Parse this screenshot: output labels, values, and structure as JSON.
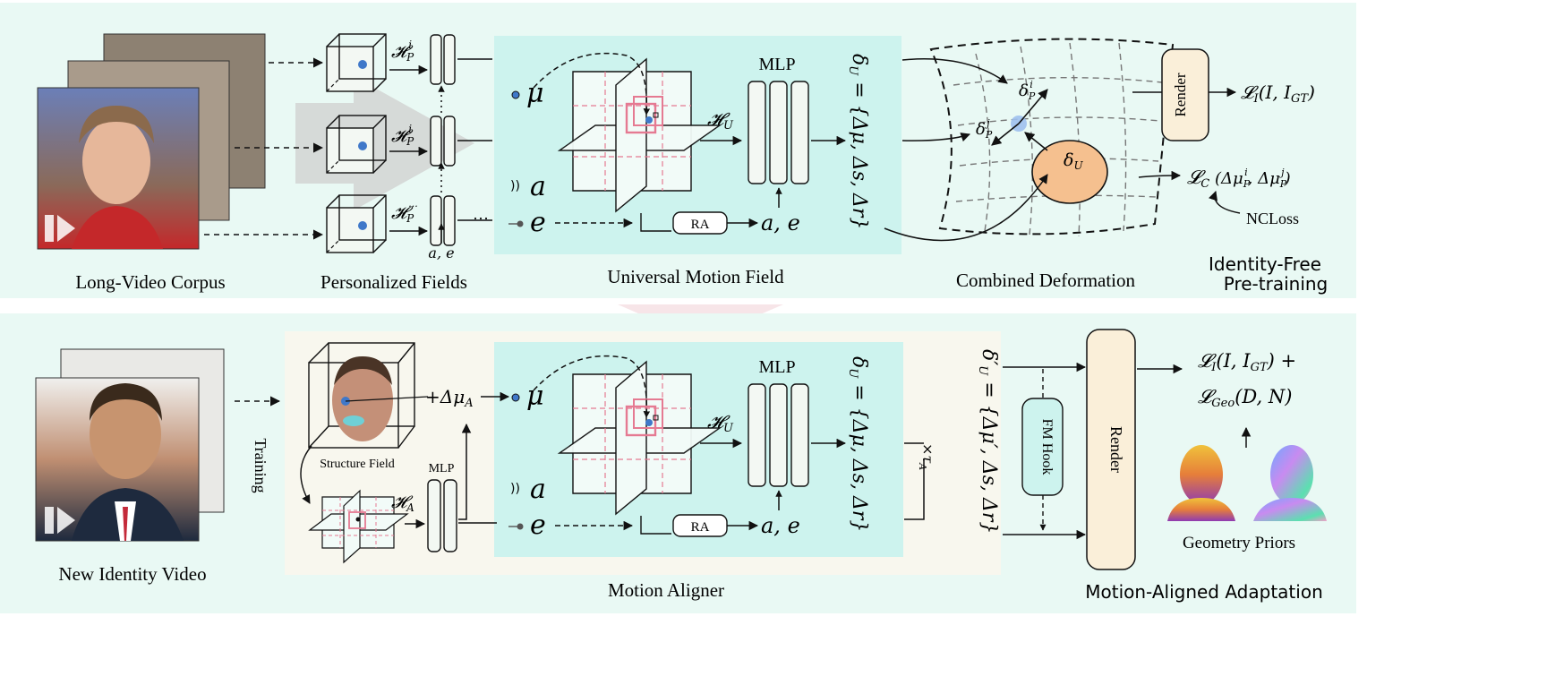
{
  "top": {
    "long_video_corpus": "Long-Video Corpus",
    "personalized_fields": "Personalized Fields",
    "universal_motion_field": "Universal Motion Field",
    "combined_deformation": "Combined Deformation",
    "stage_title_line1": "Identity-Free",
    "stage_title_line2": "Pre-training",
    "hp_sym": "𝓗",
    "hp_sub": "P",
    "hp_sup_i": "i",
    "hp_sup_dots": "···",
    "ae_label": "a, e",
    "ellipsis": "···",
    "mu": "μ",
    "a": "a",
    "e": "e",
    "hu_sym": "𝓗",
    "hu_sub": "U",
    "mlp": "MLP",
    "ra": "RA",
    "ae_out": "a, e",
    "delta_u_eq": "δU = {Δμ, Δs, Δr}",
    "render": "Render",
    "loss_i": "𝓛I(I, IGT)",
    "loss_c": "𝓛C (ΔμPi, ΔμPj)",
    "ncloss": "NCLoss",
    "delta_pi": "δPi",
    "delta_pj": "δPj",
    "delta_u": "δU"
  },
  "bottom": {
    "new_identity_video": "New Identity Video",
    "training": "Training",
    "structure_field": "Structure Field",
    "plus_delta_mu_a": "+Δμ",
    "plus_sub": "A",
    "ha_sym": "𝓗",
    "ha_sub": "A",
    "mlp_small": "MLP",
    "mu": "μ",
    "a": "a",
    "e": "e",
    "hu_sym": "𝓗",
    "hu_sub": "U",
    "mlp": "MLP",
    "ra": "RA",
    "ae_out": "a, e",
    "delta_u_eq": "δU = {Δμ, Δs, Δr}",
    "times_tau": "×τA",
    "delta_u_prime_eq": "δ′U = {Δμ′, Δs, Δr}",
    "fm_hook": "FM Hook",
    "render": "Render",
    "loss_line1": "𝓛I(I, IGT) +",
    "loss_line2": "𝓛Geo(D, N)",
    "geometry_priors": "Geometry Priors",
    "motion_aligner": "Motion Aligner",
    "stage_title": "Motion-Aligned Adaptation"
  },
  "colors": {
    "panel_bg": "#e9f9f4",
    "teal_box": "#cdf3ee",
    "aligner_bg": "#f8f7ee",
    "render_fill": "#faefd9",
    "orange_fill": "#f5c08f",
    "pink_dash": "#e57a92",
    "blue_dot": "#3f78c9"
  }
}
